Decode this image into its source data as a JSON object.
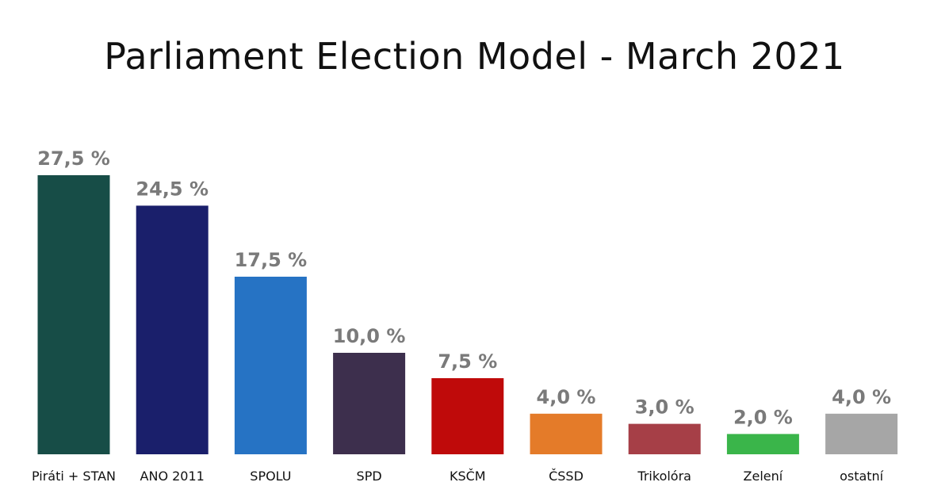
{
  "chart_data": {
    "type": "bar",
    "title": "Parliament Election Model - March 2021",
    "categories": [
      "Piráti + STAN",
      "ANO 2011",
      "SPOLU",
      "SPD",
      "KSČM",
      "ČSSD",
      "Trikolóra",
      "Zelení",
      "ostatní"
    ],
    "values": [
      27.5,
      24.5,
      17.5,
      10.0,
      7.5,
      4.0,
      3.0,
      2.0,
      4.0
    ],
    "value_labels": [
      "27,5 %",
      "24,5 %",
      "17,5 %",
      "10,0 %",
      "7,5 %",
      "4,0 %",
      "3,0 %",
      "2,0 %",
      "4,0 %"
    ],
    "colors": [
      "#174d47",
      "#1a1f6b",
      "#2673c4",
      "#3d2f4d",
      "#bf0a0a",
      "#e47b29",
      "#a63f47",
      "#3ab54a",
      "#a6a6a6"
    ],
    "label_color": "#7a7a7a",
    "xlabel": "",
    "ylabel": "",
    "ylim": [
      0,
      27.5
    ],
    "grid": false,
    "legend": "none"
  }
}
